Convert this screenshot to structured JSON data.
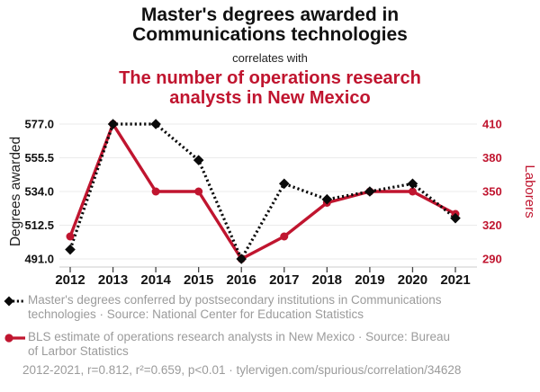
{
  "header": {
    "title": "Master's degrees awarded in Communications technologies",
    "connector": "correlates with",
    "subtitle": "The number of operations research analysts in New Mexico"
  },
  "colors": {
    "accent_red": "#c0152f",
    "series_black": "#0a0a0a",
    "text_black": "#111111",
    "muted_gray": "#9b9b9b",
    "gridline": "#ebebeb",
    "axis_line": "#cccccc",
    "tick_mark": "#444444"
  },
  "chart_data": {
    "type": "line",
    "x": [
      2012,
      2013,
      2014,
      2015,
      2016,
      2017,
      2018,
      2019,
      2020,
      2021
    ],
    "x_ticks": [
      "2012",
      "2013",
      "2014",
      "2015",
      "2016",
      "2017",
      "2018",
      "2019",
      "2020",
      "2021"
    ],
    "series": [
      {
        "name": "masters-degrees-communications-technologies",
        "legend": "Master's degrees conferred by postsecondary institutions in Communications technologies · Source: National Center for Education Statistics",
        "axis": "left",
        "marker": "diamond",
        "line_style": "dotted",
        "color": "#0a0a0a",
        "values": [
          497,
          577,
          577,
          554,
          491,
          539,
          529,
          534,
          539,
          517
        ]
      },
      {
        "name": "operations-research-analysts-new-mexico",
        "legend": "BLS estimate of operations research analysts in New Mexico · Source: Bureau of Larbor Statistics",
        "axis": "right",
        "marker": "circle",
        "line_style": "solid",
        "color": "#c0152f",
        "values": [
          310,
          410,
          350,
          350,
          290,
          310,
          340,
          350,
          350,
          330
        ]
      }
    ],
    "left_axis": {
      "label": "Degrees awarded",
      "ticks": [
        "577.0",
        "555.5",
        "534.0",
        "512.5",
        "491.0"
      ],
      "min": 491,
      "max": 577
    },
    "right_axis": {
      "label": "Laborers",
      "ticks": [
        "410",
        "380",
        "350",
        "320",
        "290"
      ],
      "min": 290,
      "max": 410
    },
    "grid": true,
    "legend_position": "bottom"
  },
  "footer": {
    "text": "2012-2021, r=0.812, r²=0.659, p<0.01 · tylervigen.com/spurious/correlation/34628"
  }
}
